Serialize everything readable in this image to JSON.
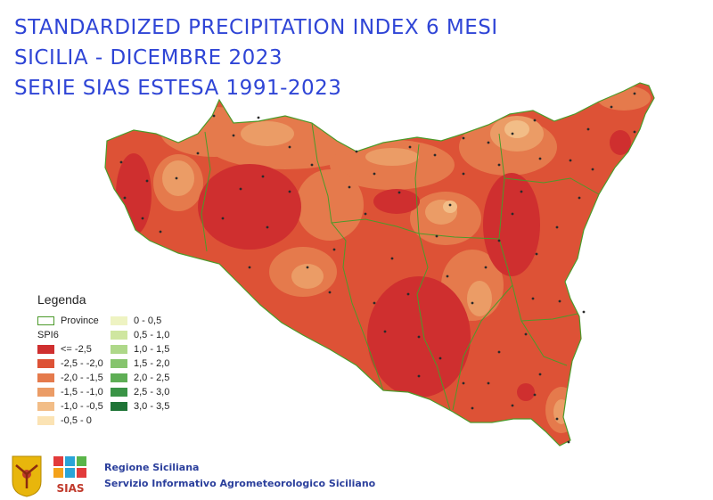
{
  "title": {
    "line1": "STANDARDIZED PRECIPITATION INDEX 6 MESI",
    "line2": "SICILIA - DICEMBRE 2023",
    "line3": "SERIE SIAS ESTESA 1991-2023"
  },
  "legend": {
    "title": "Legenda",
    "province_label": "Province",
    "spi_label": "SPI6",
    "classes_negative": [
      {
        "label": "<= -2,5",
        "color": "#cf2f2f"
      },
      {
        "label": "-2,5 - -2,0",
        "color": "#dd5236"
      },
      {
        "label": "-2,0 - -1,5",
        "color": "#e57a4c"
      },
      {
        "label": "-1,5 - -1,0",
        "color": "#eb9c66"
      },
      {
        "label": "-1,0 - -0,5",
        "color": "#f2bd87"
      },
      {
        "label": "-0,5 - 0",
        "color": "#fbe3b4"
      }
    ],
    "classes_positive": [
      {
        "label": "0 - 0,5",
        "color": "#eef3c2"
      },
      {
        "label": "0,5 - 1,0",
        "color": "#cfe6a0"
      },
      {
        "label": "1,0 - 1,5",
        "color": "#aed889"
      },
      {
        "label": "1,5 - 2,0",
        "color": "#86c46d"
      },
      {
        "label": "2,0 - 2,5",
        "color": "#5eae55"
      },
      {
        "label": "2,5 - 3,0",
        "color": "#3a9446"
      },
      {
        "label": "3,0 - 3,5",
        "color": "#1e7436"
      }
    ],
    "province_border_color": "#4c9a2a"
  },
  "footer": {
    "org_line1": "Regione Siciliana",
    "org_line2": "Servizio Informativo Agrometeorologico Siciliano",
    "logo_text": "SIAS"
  }
}
